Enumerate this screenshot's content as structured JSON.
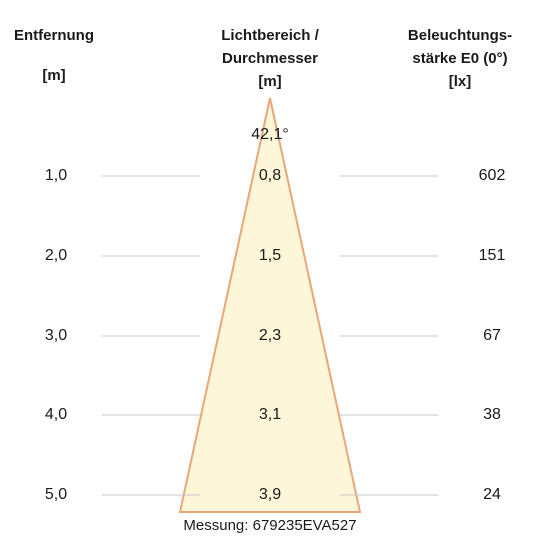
{
  "headers": {
    "distance": {
      "line1": "Entfernung",
      "unit": "[m]"
    },
    "area": {
      "line1": "Lichtbereich /",
      "line2": "Durchmesser",
      "unit": "[m]"
    },
    "illuminance": {
      "line1": "Beleuchtungs-",
      "line2": "stärke E0 (0°)",
      "unit": "[lx]"
    }
  },
  "beam_angle": "42,1°",
  "rows": [
    {
      "distance": "1,0",
      "diameter": "0,8",
      "lux": "602"
    },
    {
      "distance": "2,0",
      "diameter": "1,5",
      "lux": "151"
    },
    {
      "distance": "3,0",
      "diameter": "2,3",
      "lux": "67"
    },
    {
      "distance": "4,0",
      "diameter": "3,1",
      "lux": "38"
    },
    {
      "distance": "5,0",
      "diameter": "3,9",
      "lux": "24"
    }
  ],
  "footer": "Messung: 679235EVA527",
  "colors": {
    "beam_fill": "#fdf6d8",
    "beam_stroke": "#e8a77a",
    "gridline": "#c8c8c8"
  }
}
